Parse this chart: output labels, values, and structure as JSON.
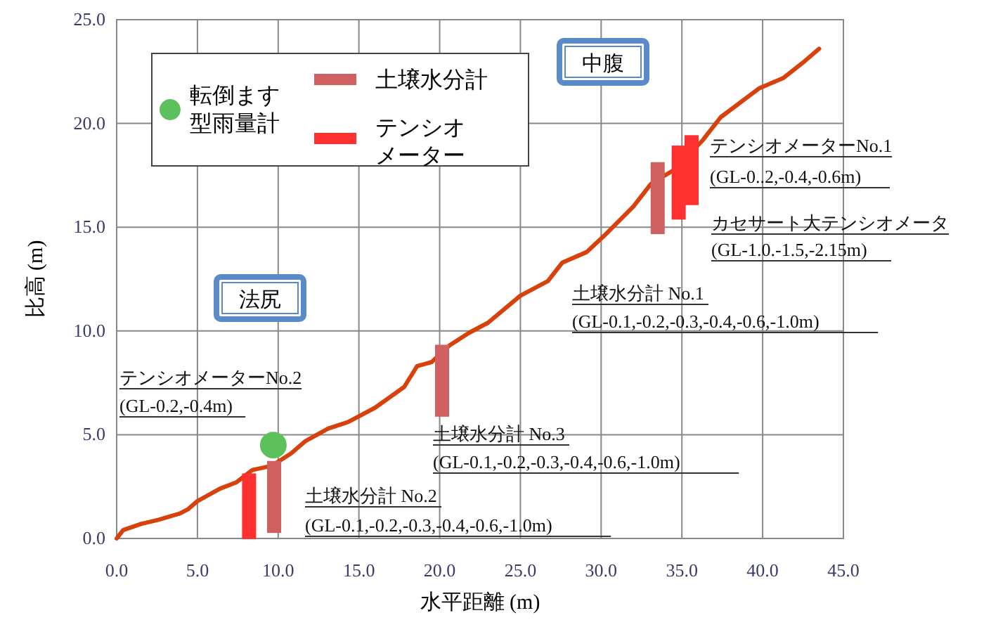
{
  "chart_data": {
    "type": "line",
    "xlabel": "水平距離 (m)",
    "ylabel": "比高 (m)",
    "xlim": [
      0,
      45
    ],
    "ylim": [
      0,
      25
    ],
    "xticks": [
      {
        "value": 0,
        "label": "0.0"
      },
      {
        "value": 5,
        "label": "5.0"
      },
      {
        "value": 10,
        "label": "10.0"
      },
      {
        "value": 15,
        "label": "15.0"
      },
      {
        "value": 20,
        "label": "20.0"
      },
      {
        "value": 25,
        "label": "25.0"
      },
      {
        "value": 30,
        "label": "30.0"
      },
      {
        "value": 35,
        "label": "35.0"
      },
      {
        "value": 40,
        "label": "40.0"
      },
      {
        "value": 45,
        "label": "45.0"
      }
    ],
    "yticks": [
      {
        "value": 0,
        "label": "0.0"
      },
      {
        "value": 5,
        "label": "5.0"
      },
      {
        "value": 10,
        "label": "10.0"
      },
      {
        "value": 15,
        "label": "15.0"
      },
      {
        "value": 20,
        "label": "20.0"
      },
      {
        "value": 25,
        "label": "25.0"
      }
    ],
    "grid": true,
    "legend": "top left",
    "series": [
      {
        "color": "#d8400c",
        "marker": "none",
        "x": [
          0,
          0.4,
          1.5,
          2.6,
          3.9,
          4.4,
          5.0,
          6.4,
          7.4,
          8.4,
          9.6,
          10.8,
          11.7,
          13.1,
          14.3,
          16.0,
          17.8,
          18.6,
          19.5,
          20.6,
          21.8,
          23.0,
          25.0,
          26.7,
          27.6,
          29.1,
          30.2,
          32.0,
          33.1,
          34.6,
          36.3,
          37.4,
          39.8,
          41.3,
          42.6,
          43.5
        ],
        "values": [
          0,
          0.4,
          0.7,
          0.9,
          1.2,
          1.4,
          1.8,
          2.4,
          2.7,
          3.3,
          3.5,
          4.1,
          4.7,
          5.3,
          5.6,
          6.3,
          7.3,
          8.3,
          8.5,
          9.3,
          9.9,
          10.4,
          11.7,
          12.4,
          13.3,
          13.8,
          14.6,
          16.0,
          17.1,
          17.8,
          19.2,
          20.3,
          21.7,
          22.2,
          23.0,
          23.6
        ]
      },
      {
        "type": "scatter",
        "name": "転倒ます型雨量計",
        "color": "#5cc05c",
        "marker": "circle",
        "x": [
          9.7
        ],
        "values": [
          4.5
        ]
      },
      {
        "type": "bar",
        "name": "土壌水分計",
        "color": "#d06060",
        "x": [
          9.75,
          20.15,
          33.5
        ],
        "base": [
          0.3,
          5.9,
          14.7
        ],
        "values": [
          3.4,
          3.4,
          3.4
        ]
      },
      {
        "type": "bar",
        "name": "テンシオメーター",
        "color": "#ff3030",
        "x": [
          8.2,
          34.8,
          35.6
        ],
        "base": [
          0,
          15.4,
          16.1
        ],
        "values": [
          3.1,
          3.5,
          3.3
        ]
      }
    ],
    "annotations": [
      "テンシオメーターNo.1",
      "(GL-0..2,-0.4,-0.6m)",
      "カセサート大テンシオメータ",
      "(GL-1.0.-1.5,-2.15m)",
      "土壌水分計 No.1",
      "(GL-0.1,-0.2,-0.3,-0.4,-0.6,-1.0m)",
      "テンシオメーターNo.2",
      "(GL-0.2,-0.4m)",
      "土壌水分計 No.3",
      "(GL-0.1,-0.2,-0.3,-0.4,-0.6,-1.0m)",
      "土壌水分計 No.2",
      "(GL-0.1,-0.2,-0.3,-0.4,-0.6,-1.0m)",
      "法尻",
      "中腹"
    ]
  }
}
